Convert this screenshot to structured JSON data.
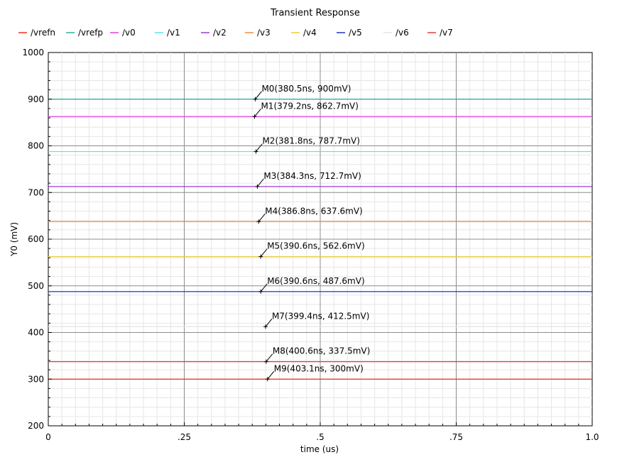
{
  "chart_data": {
    "type": "line",
    "title": "Transient Response",
    "xlabel": "time (us)",
    "ylabel": "Y0 (mV)",
    "xlim": [
      0,
      1.0
    ],
    "ylim": [
      200,
      1000
    ],
    "x_ticks": [
      0,
      0.25,
      0.5,
      0.75,
      1.0
    ],
    "x_tick_labels": [
      "0",
      ".25",
      ".5",
      ".75",
      "1.0"
    ],
    "y_ticks": [
      200,
      300,
      400,
      500,
      600,
      700,
      800,
      900,
      1000
    ],
    "y_tick_labels": [
      "200",
      "300",
      "400",
      "500",
      "600",
      "700",
      "800",
      "900",
      "1000"
    ],
    "grid": true,
    "legend_position": "top",
    "series": [
      {
        "name": "/vrefn",
        "color": "#e8371f",
        "x": [
          0,
          1.0
        ],
        "values": [
          300,
          300
        ]
      },
      {
        "name": "/vrefp",
        "color": "#2ab09a",
        "x": [
          0,
          1.0
        ],
        "values": [
          900,
          900
        ]
      },
      {
        "name": "/v0",
        "color": "#e040e0",
        "x": [
          0,
          1.0
        ],
        "values": [
          862.7,
          862.7
        ]
      },
      {
        "name": "/v1",
        "color": "#55e3ea",
        "x": [
          0,
          1.0
        ],
        "values": [
          787.7,
          787.7
        ]
      },
      {
        "name": "/v2",
        "color": "#9b3bd6",
        "x": [
          0,
          1.0
        ],
        "values": [
          712.7,
          712.7
        ]
      },
      {
        "name": "/v3",
        "color": "#f08a3c",
        "x": [
          0,
          1.0
        ],
        "values": [
          637.6,
          637.6
        ]
      },
      {
        "name": "/v4",
        "color": "#eacb3a",
        "x": [
          0,
          1.0
        ],
        "values": [
          562.6,
          562.6
        ]
      },
      {
        "name": "/v5",
        "color": "#2233c8",
        "x": [
          0,
          1.0
        ],
        "values": [
          487.6,
          487.6
        ]
      },
      {
        "name": "/v6",
        "color": "#e4e4e4",
        "x": [
          0,
          1.0
        ],
        "values": [
          412.5,
          412.5
        ]
      },
      {
        "name": "/v7",
        "color": "#e03a3a",
        "x": [
          0,
          1.0
        ],
        "values": [
          337.5,
          337.5
        ]
      }
    ],
    "markers": [
      {
        "label": "M0(380.5ns, 900mV)",
        "x": 0.3805,
        "y": 900
      },
      {
        "label": "M1(379.2ns, 862.7mV)",
        "x": 0.3792,
        "y": 862.7
      },
      {
        "label": "M2(381.8ns, 787.7mV)",
        "x": 0.3818,
        "y": 787.7
      },
      {
        "label": "M3(384.3ns, 712.7mV)",
        "x": 0.3843,
        "y": 712.7
      },
      {
        "label": "M4(386.8ns, 637.6mV)",
        "x": 0.3868,
        "y": 637.6
      },
      {
        "label": "M5(390.6ns, 562.6mV)",
        "x": 0.3906,
        "y": 562.6
      },
      {
        "label": "M6(390.6ns, 487.6mV)",
        "x": 0.3906,
        "y": 487.6
      },
      {
        "label": "M7(399.4ns, 412.5mV)",
        "x": 0.3994,
        "y": 412.5
      },
      {
        "label": "M8(400.6ns, 337.5mV)",
        "x": 0.4006,
        "y": 337.5
      },
      {
        "label": "M9(403.1ns, 300mV)",
        "x": 0.4031,
        "y": 300
      }
    ]
  }
}
